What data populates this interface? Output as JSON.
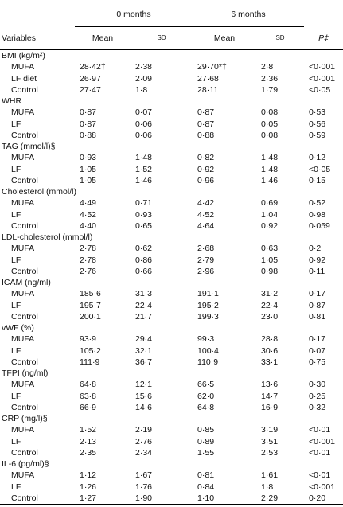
{
  "table": {
    "header": {
      "period_0": "0 months",
      "period_6": "6 months",
      "columns": [
        "Variables",
        "Mean",
        "SD",
        "Mean",
        "SD",
        "P‡"
      ]
    },
    "groups": [
      {
        "label": "BMI (kg/m²)",
        "rows": [
          [
            "MUFA",
            "28·42†",
            "2·38",
            "29·70*†",
            "2·8",
            "<0·001"
          ],
          [
            "LF diet",
            "26·97",
            "2·09",
            "27·68",
            "2·36",
            "<0·001"
          ],
          [
            "Control",
            "27·47",
            "1·8",
            "28·11",
            "1·79",
            "<0·05"
          ]
        ]
      },
      {
        "label": "WHR",
        "rows": [
          [
            "MUFA",
            "0·87",
            "0·07",
            "0·87",
            "0·08",
            "0·53"
          ],
          [
            "LF",
            "0·87",
            "0·06",
            "0·87",
            "0·05",
            "0·56"
          ],
          [
            "Control",
            "0·88",
            "0·06",
            "0·88",
            "0·08",
            "0·59"
          ]
        ]
      },
      {
        "label": "TAG (mmol/l)§",
        "rows": [
          [
            "MUFA",
            "0·93",
            "1·48",
            "0·82",
            "1·48",
            "0·12"
          ],
          [
            "LF",
            "1·05",
            "1·52",
            "0·92",
            "1·48",
            "<0·05"
          ],
          [
            "Control",
            "1·05",
            "1·46",
            "0·96",
            "1·46",
            "0·15"
          ]
        ]
      },
      {
        "label": "Cholesterol (mmol/l)",
        "rows": [
          [
            "MUFA",
            "4·49",
            "0·71",
            "4·42",
            "0·69",
            "0·52"
          ],
          [
            "LF",
            "4·52",
            "0·93",
            "4·52",
            "1·04",
            "0·98"
          ],
          [
            "Control",
            "4·40",
            "0·65",
            "4·64",
            "0·92",
            "0·059"
          ]
        ]
      },
      {
        "label": "LDL-cholesterol (mmol/l)",
        "rows": [
          [
            "MUFA",
            "2·78",
            "0·62",
            "2·68",
            "0·63",
            "0·2"
          ],
          [
            "LF",
            "2·78",
            "0·86",
            "2·79",
            "1·05",
            "0·92"
          ],
          [
            "Control",
            "2·76",
            "0·66",
            "2·96",
            "0·98",
            "0·11"
          ]
        ]
      },
      {
        "label": "ICAM (ng/ml)",
        "rows": [
          [
            "MUFA",
            "185·6",
            "31·3",
            "191·1",
            "31·2",
            "0·17"
          ],
          [
            "LF",
            "195·7",
            "22·4",
            "195·2",
            "22·4",
            "0·87"
          ],
          [
            "Control",
            "200·1",
            "21·7",
            "199·3",
            "23·0",
            "0·81"
          ]
        ]
      },
      {
        "label": "vWF (%)",
        "rows": [
          [
            "MUFA",
            "93·9",
            "29·4",
            "99·3",
            "28·8",
            "0·17"
          ],
          [
            "LF",
            "105·2",
            "32·1",
            "100·4",
            "30·6",
            "0·07"
          ],
          [
            "Control",
            "111·9",
            "36·7",
            "110·9",
            "33·1",
            "0·75"
          ]
        ]
      },
      {
        "label": "TFPI (ng/ml)",
        "rows": [
          [
            "MUFA",
            "64·8",
            "12·1",
            "66·5",
            "13·6",
            "0·30"
          ],
          [
            "LF",
            "63·8",
            "15·6",
            "62·0",
            "14·7",
            "0·25"
          ],
          [
            "Control",
            "66·9",
            "14·6",
            "64·8",
            "16·9",
            "0·32"
          ]
        ]
      },
      {
        "label": "CRP (mg/l)§",
        "rows": [
          [
            "MUFA",
            "1·52",
            "2·19",
            "0·85",
            "3·19",
            "<0·01"
          ],
          [
            "LF",
            "2·13",
            "2·76",
            "0·89",
            "3·51",
            "<0·001"
          ],
          [
            "Control",
            "2·35",
            "2·34",
            "1·55",
            "2·53",
            "<0·01"
          ]
        ]
      },
      {
        "label": "IL-6 (pg/ml)§",
        "rows": [
          [
            "MUFA",
            "1·12",
            "1·67",
            "0·81",
            "1·61",
            "<0·01"
          ],
          [
            "LF",
            "1·26",
            "1·76",
            "0·84",
            "1·8",
            "<0·001"
          ],
          [
            "Control",
            "1·27",
            "1·90",
            "1·10",
            "2·29",
            "0·20"
          ]
        ]
      }
    ]
  }
}
